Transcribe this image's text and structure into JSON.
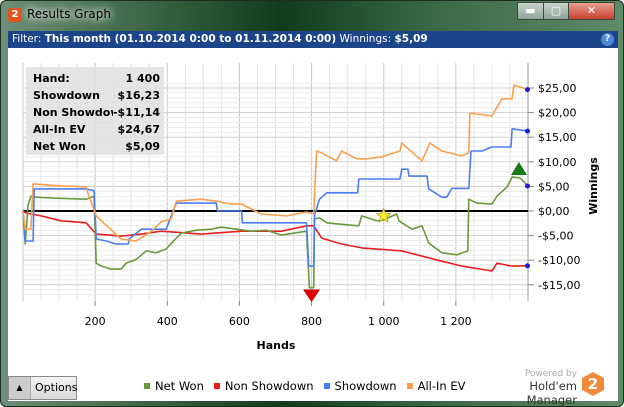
{
  "window": {
    "title": "Results Graph",
    "app_icon": "2",
    "buttons": {
      "minimize": "minimize-icon",
      "maximize": "maximize-icon",
      "close": "close-icon"
    }
  },
  "filter": {
    "label": "Filter:",
    "value": "This month (01.10.2014 0:00 to 01.11.2014 0:00)",
    "winnings_label": "Winnings:",
    "winnings_value": "$5,09",
    "help": "?"
  },
  "summary": [
    {
      "label": "Hand:",
      "value": "1 400"
    },
    {
      "label": "Showdown",
      "value": "$16,23"
    },
    {
      "label": "Non Showdown",
      "value": "-$11,14"
    },
    {
      "label": "All-In EV",
      "value": "$24,67"
    },
    {
      "label": "Net Won",
      "value": "$5,09"
    }
  ],
  "options_label": "Options",
  "branding": {
    "powered_by": "Powered by",
    "name": "Hold'em Manager",
    "logo": "2"
  },
  "chart_data": {
    "type": "line",
    "xlabel": "Hands",
    "ylabel": "Winnings",
    "xlim": [
      0,
      1400
    ],
    "ylim": [
      -17,
      26
    ],
    "xticks": [
      {
        "v": 200,
        "label": "200"
      },
      {
        "v": 400,
        "label": "400"
      },
      {
        "v": 600,
        "label": "600"
      },
      {
        "v": 800,
        "label": "800"
      },
      {
        "v": 1000,
        "label": "1 000"
      },
      {
        "v": 1200,
        "label": "1 200"
      }
    ],
    "yticks": [
      {
        "v": 25,
        "label": "$25,00"
      },
      {
        "v": 20,
        "label": "$20,00"
      },
      {
        "v": 15,
        "label": "$15,00"
      },
      {
        "v": 10,
        "label": "$10,00"
      },
      {
        "v": 5,
        "label": "$5,00"
      },
      {
        "v": 0,
        "label": "$0,00"
      },
      {
        "v": -5,
        "label": "-$5,00"
      },
      {
        "v": -10,
        "label": "-$10,00"
      },
      {
        "v": -15,
        "label": "-$15,00"
      }
    ],
    "grid": true,
    "legend": "bottom",
    "series": [
      {
        "name": "Net Won",
        "color": "#6a9a3a",
        "points": [
          [
            0,
            0
          ],
          [
            6,
            -6.7
          ],
          [
            14,
            1.2
          ],
          [
            22,
            3.0
          ],
          [
            36,
            2.8
          ],
          [
            92,
            2.6
          ],
          [
            175,
            2.4
          ],
          [
            197,
            3.0
          ],
          [
            203,
            -10.6
          ],
          [
            217,
            -11.2
          ],
          [
            244,
            -11.8
          ],
          [
            272,
            -11.8
          ],
          [
            286,
            -10.6
          ],
          [
            314,
            -9.8
          ],
          [
            342,
            -8.1
          ],
          [
            369,
            -8.5
          ],
          [
            397,
            -7.7
          ],
          [
            425,
            -5.5
          ],
          [
            439,
            -4.5
          ],
          [
            481,
            -3.9
          ],
          [
            522,
            -3.7
          ],
          [
            550,
            -3.3
          ],
          [
            592,
            -3.7
          ],
          [
            633,
            -4.1
          ],
          [
            675,
            -3.9
          ],
          [
            717,
            -4.9
          ],
          [
            786,
            -4.1
          ],
          [
            794,
            -15.6
          ],
          [
            806,
            -15.6
          ],
          [
            808,
            -1.6
          ],
          [
            822,
            -1.4
          ],
          [
            842,
            -2.4
          ],
          [
            897,
            -2.8
          ],
          [
            931,
            -3.0
          ],
          [
            939,
            -1.0
          ],
          [
            981,
            -2.0
          ],
          [
            1000,
            -1.8
          ],
          [
            1036,
            -0.6
          ],
          [
            1042,
            -2.0
          ],
          [
            1078,
            -3.7
          ],
          [
            1106,
            -3.0
          ],
          [
            1125,
            -6.5
          ],
          [
            1161,
            -8.5
          ],
          [
            1203,
            -8.9
          ],
          [
            1233,
            -8.1
          ],
          [
            1236,
            2.4
          ],
          [
            1258,
            1.6
          ],
          [
            1300,
            1.4
          ],
          [
            1314,
            3.0
          ],
          [
            1342,
            4.9
          ],
          [
            1356,
            6.9
          ],
          [
            1378,
            6.7
          ],
          [
            1400,
            5.09
          ]
        ]
      },
      {
        "name": "Non Showdown",
        "color": "#e82020",
        "points": [
          [
            0,
            0
          ],
          [
            8,
            -0.4
          ],
          [
            50,
            -1.0
          ],
          [
            106,
            -2.0
          ],
          [
            175,
            -2.4
          ],
          [
            203,
            -4.7
          ],
          [
            272,
            -5.1
          ],
          [
            328,
            -4.7
          ],
          [
            383,
            -4.1
          ],
          [
            494,
            -4.7
          ],
          [
            606,
            -4.1
          ],
          [
            717,
            -4.1
          ],
          [
            786,
            -3.0
          ],
          [
            806,
            -3.0
          ],
          [
            828,
            -5.5
          ],
          [
            883,
            -6.7
          ],
          [
            939,
            -7.5
          ],
          [
            1050,
            -8.1
          ],
          [
            1161,
            -10.2
          ],
          [
            1217,
            -11.2
          ],
          [
            1300,
            -12.2
          ],
          [
            1314,
            -10.6
          ],
          [
            1356,
            -11.2
          ],
          [
            1400,
            -11.14
          ]
        ]
      },
      {
        "name": "Showdown",
        "color": "#4a7ef0",
        "points": [
          [
            0,
            0
          ],
          [
            6,
            -6.1
          ],
          [
            28,
            -6.1
          ],
          [
            31,
            4.5
          ],
          [
            175,
            4.5
          ],
          [
            197,
            4.1
          ],
          [
            203,
            -5.7
          ],
          [
            231,
            -6.1
          ],
          [
            258,
            -6.7
          ],
          [
            292,
            -6.7
          ],
          [
            294,
            -5.7
          ],
          [
            328,
            -3.7
          ],
          [
            397,
            -3.7
          ],
          [
            425,
            1.6
          ],
          [
            536,
            1.6
          ],
          [
            539,
            0
          ],
          [
            606,
            0
          ],
          [
            608,
            -2.4
          ],
          [
            786,
            -2.4
          ],
          [
            792,
            -11.2
          ],
          [
            806,
            -11.2
          ],
          [
            808,
            -0.8
          ],
          [
            822,
            2.4
          ],
          [
            842,
            3.7
          ],
          [
            928,
            3.7
          ],
          [
            931,
            6.5
          ],
          [
            1045,
            6.5
          ],
          [
            1050,
            8.5
          ],
          [
            1067,
            8.5
          ],
          [
            1070,
            7.1
          ],
          [
            1120,
            7.1
          ],
          [
            1125,
            4.5
          ],
          [
            1161,
            2.8
          ],
          [
            1175,
            2.8
          ],
          [
            1189,
            4.6
          ],
          [
            1236,
            4.6
          ],
          [
            1242,
            12.2
          ],
          [
            1272,
            12.2
          ],
          [
            1300,
            13.0
          ],
          [
            1353,
            13.0
          ],
          [
            1356,
            16.7
          ],
          [
            1400,
            16.23
          ]
        ]
      },
      {
        "name": "All-In EV",
        "color": "#f8a050",
        "points": [
          [
            0,
            0
          ],
          [
            6,
            -3.7
          ],
          [
            22,
            -3.7
          ],
          [
            28,
            5.5
          ],
          [
            106,
            5.1
          ],
          [
            175,
            4.9
          ],
          [
            183,
            3.0
          ],
          [
            203,
            -1.0
          ],
          [
            272,
            -5.7
          ],
          [
            314,
            -6.1
          ],
          [
            356,
            -4.1
          ],
          [
            383,
            -2.2
          ],
          [
            411,
            -1.6
          ],
          [
            425,
            2.0
          ],
          [
            494,
            2.4
          ],
          [
            536,
            2.0
          ],
          [
            578,
            1.4
          ],
          [
            606,
            1.4
          ],
          [
            661,
            -0.6
          ],
          [
            731,
            -1.0
          ],
          [
            786,
            -0.2
          ],
          [
            806,
            -0.6
          ],
          [
            814,
            12.2
          ],
          [
            828,
            11.8
          ],
          [
            869,
            10.2
          ],
          [
            883,
            12.2
          ],
          [
            925,
            10.6
          ],
          [
            953,
            10.6
          ],
          [
            994,
            11.0
          ],
          [
            1045,
            12.2
          ],
          [
            1050,
            13.8
          ],
          [
            1106,
            10.2
          ],
          [
            1128,
            13.8
          ],
          [
            1161,
            12.2
          ],
          [
            1217,
            11.2
          ],
          [
            1236,
            11.8
          ],
          [
            1239,
            19.9
          ],
          [
            1300,
            19.3
          ],
          [
            1311,
            20.7
          ],
          [
            1328,
            22.8
          ],
          [
            1356,
            22.8
          ],
          [
            1361,
            25.6
          ],
          [
            1400,
            24.67
          ]
        ]
      }
    ],
    "markers": [
      {
        "type": "min",
        "shape": "triangle-down",
        "color": "#e00000",
        "x": 800,
        "y": -15.6
      },
      {
        "type": "star",
        "shape": "star",
        "color": "#ffee30",
        "x": 1000,
        "y": -1.0
      },
      {
        "type": "max",
        "shape": "triangle-up",
        "color": "#1a7a1a",
        "x": 1375,
        "y": 6.9
      }
    ]
  }
}
